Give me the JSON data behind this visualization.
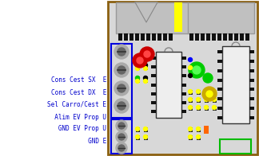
{
  "bg_color": "#ffffff",
  "board_edge_color": "#8b6010",
  "board_inner_color": "#d8d8d8",
  "labels": [
    "Cons Cest SX  E",
    "Cons Cest DX  E",
    "Sel Carro/Cest E",
    "  Alim EV Prop U",
    "   GND EV Prop U",
    "             GND E"
  ],
  "label_color": "#0000cc",
  "label_fontsize": 5.5,
  "top_connector_color": "#b0b0b0",
  "pin_color": "#111111",
  "yellow_color": "#ffff00",
  "ic_body_color": "#eeeeee",
  "ic_pin_color": "#111111",
  "ic_edge_color": "#333333",
  "conn_box_color": "#0000dd",
  "conn_bg_color": "#d8d8d8",
  "conn_screw_outer": "#aaaaaa",
  "conn_screw_inner": "#666666",
  "green_rect_color": "#00bb00"
}
